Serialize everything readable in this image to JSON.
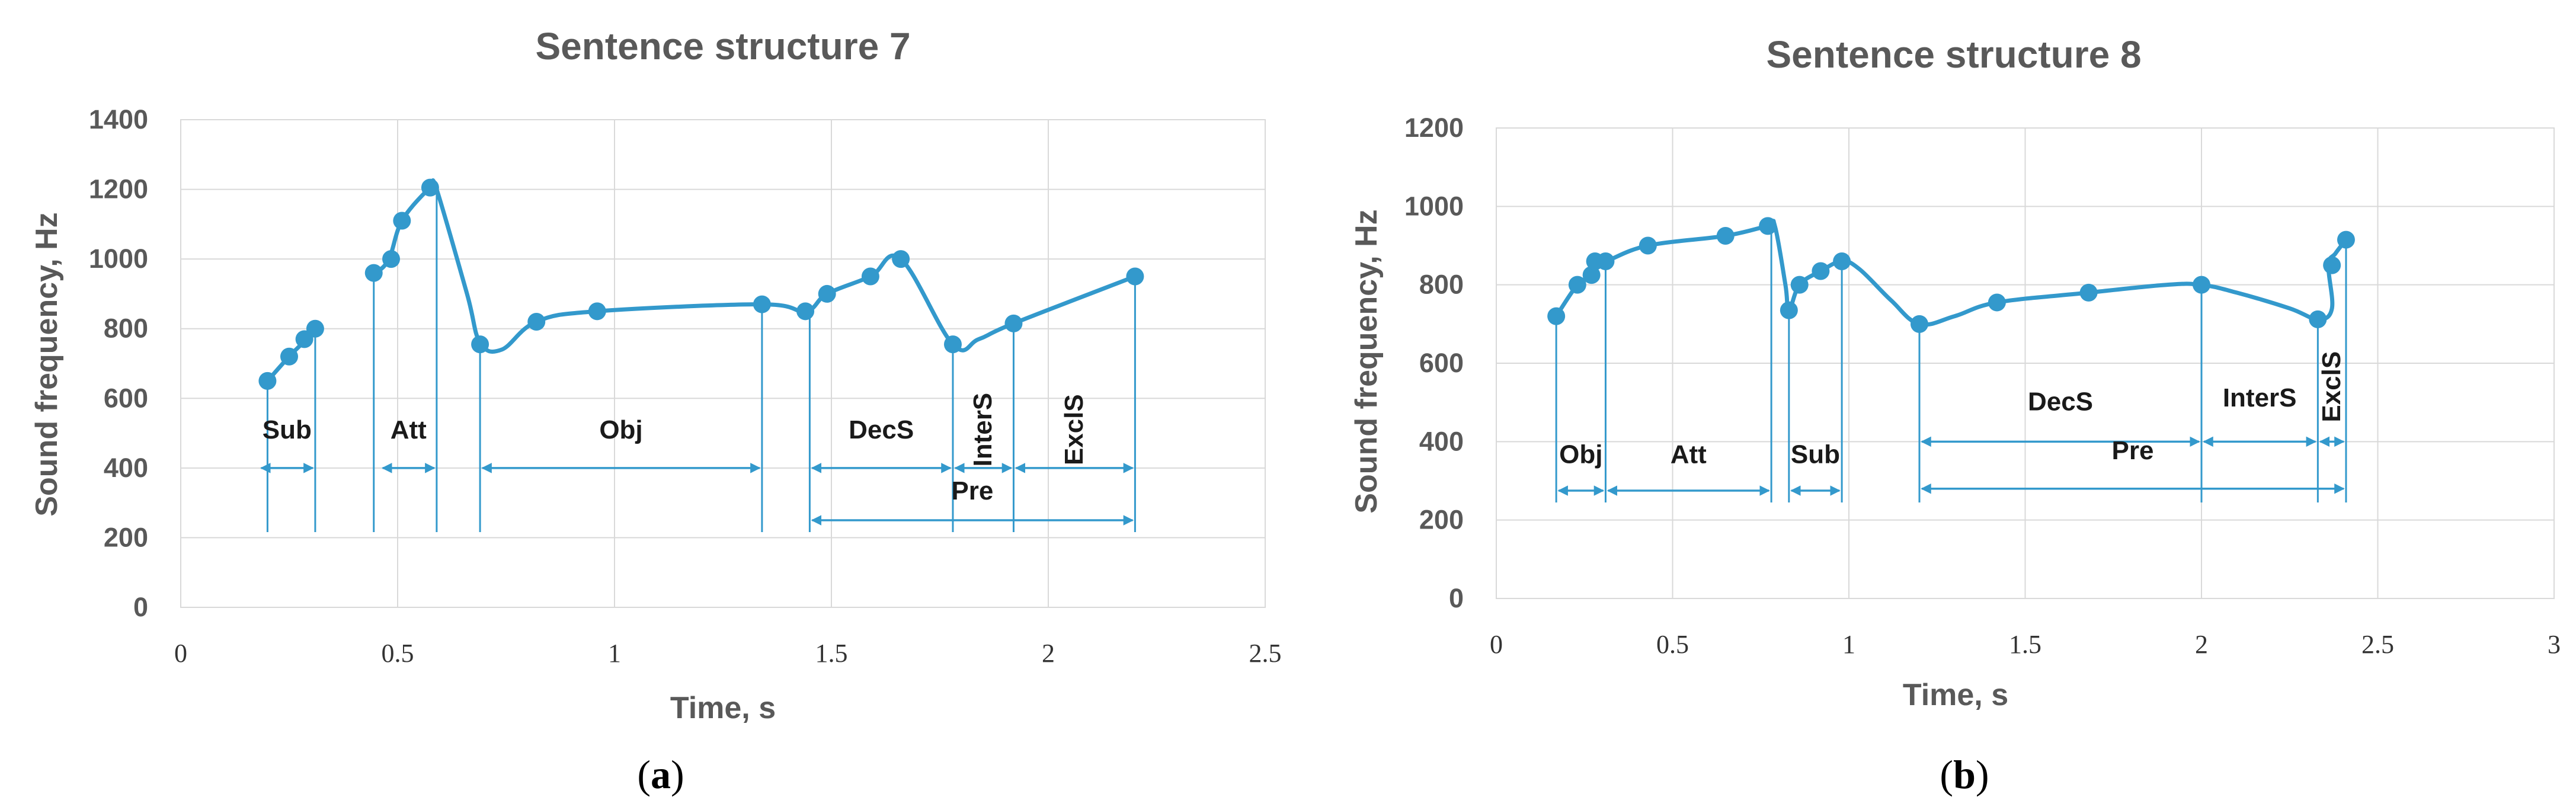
{
  "chart_data": [
    {
      "type": "line",
      "panel": "(a)",
      "panel_letter": "a",
      "title": "Sentence structure 7",
      "xlabel": "Time, s",
      "ylabel": "Sound frequency, Hz",
      "xlim": [
        0,
        2.5
      ],
      "ylim": [
        0,
        1400
      ],
      "xticks": [
        0,
        0.5,
        1,
        1.5,
        2,
        2.5
      ],
      "xtick_labels": [
        "0",
        "0.5",
        "1",
        "1.5",
        "2",
        "2.5"
      ],
      "yticks": [
        0,
        200,
        400,
        600,
        800,
        1000,
        1200,
        1400
      ],
      "ytick_labels": [
        "0",
        "200",
        "400",
        "600",
        "800",
        "1000",
        "1200",
        "1400"
      ],
      "grid": true,
      "color": "#3399CC",
      "curves": [
        [
          [
            0.2,
            650
          ],
          [
            0.25,
            720
          ],
          [
            0.29,
            770
          ],
          [
            0.31,
            800
          ]
        ],
        [
          [
            0.45,
            960
          ],
          [
            0.48,
            1000
          ],
          [
            0.51,
            1110
          ],
          [
            0.57,
            1200
          ],
          [
            0.58,
            1205
          ],
          [
            0.59,
            1200
          ],
          [
            0.66,
            900
          ],
          [
            0.69,
            760
          ],
          [
            0.74,
            740
          ],
          [
            0.82,
            820
          ],
          [
            0.96,
            850
          ],
          [
            1.34,
            870
          ],
          [
            1.44,
            850
          ],
          [
            1.49,
            900
          ],
          [
            1.59,
            950
          ],
          [
            1.66,
            1000
          ],
          [
            1.78,
            755
          ],
          [
            1.84,
            770
          ],
          [
            1.92,
            815
          ],
          [
            2.2,
            950
          ]
        ]
      ],
      "markers": [
        [
          0.2,
          650
        ],
        [
          0.25,
          720
        ],
        [
          0.285,
          770
        ],
        [
          0.31,
          800
        ],
        [
          0.445,
          960
        ],
        [
          0.485,
          1000
        ],
        [
          0.51,
          1110
        ],
        [
          0.575,
          1205
        ],
        [
          0.69,
          755
        ],
        [
          0.82,
          820
        ],
        [
          0.96,
          850
        ],
        [
          1.34,
          870
        ],
        [
          1.44,
          850
        ],
        [
          1.49,
          900
        ],
        [
          1.59,
          950
        ],
        [
          1.66,
          1000
        ],
        [
          1.78,
          755
        ],
        [
          1.92,
          815
        ],
        [
          2.2,
          950
        ]
      ],
      "drops": [
        [
          0.2,
          650
        ],
        [
          0.31,
          800
        ],
        [
          0.445,
          960
        ],
        [
          0.59,
          1200
        ],
        [
          0.69,
          755
        ],
        [
          1.34,
          870
        ],
        [
          1.45,
          850
        ],
        [
          1.78,
          755
        ],
        [
          1.92,
          815
        ],
        [
          2.2,
          950
        ]
      ],
      "segments": [
        {
          "label": "Sub",
          "x1": 0.18,
          "x2": 0.31,
          "y": 400,
          "label_y": 485,
          "vertical": false
        },
        {
          "label": "Att",
          "x1": 0.46,
          "x2": 0.59,
          "y": 400,
          "label_y": 485,
          "vertical": false
        },
        {
          "label": "Obj",
          "x1": 0.69,
          "x2": 1.34,
          "y": 400,
          "label_y": 485,
          "vertical": false
        },
        {
          "label": "DecS",
          "x1": 1.45,
          "x2": 1.78,
          "y": 400,
          "label_y": 485,
          "vertical": false
        },
        {
          "label": "InterS",
          "x1": 1.78,
          "x2": 1.92,
          "y": 400,
          "label_y": 510,
          "vertical": true
        },
        {
          "label": "ExclS",
          "x1": 1.92,
          "x2": 2.2,
          "y": 400,
          "label_y": 510,
          "vertical": true
        },
        {
          "label": "Pre",
          "x1": 1.45,
          "x2": 2.2,
          "y": 250,
          "label_y": 310,
          "vertical": false
        }
      ]
    },
    {
      "type": "line",
      "panel": "(b)",
      "panel_letter": "b",
      "title": "Sentence structure 8",
      "xlabel": "Time, s",
      "ylabel": "Sound frequency, Hz",
      "xlim": [
        0,
        3
      ],
      "ylim": [
        0,
        1200
      ],
      "xticks": [
        0,
        0.5,
        1,
        1.5,
        2,
        2.5,
        3
      ],
      "xtick_labels": [
        "0",
        "0.5",
        "1",
        "1.5",
        "2",
        "2.5",
        "3"
      ],
      "yticks": [
        0,
        200,
        400,
        600,
        800,
        1000,
        1200
      ],
      "ytick_labels": [
        "0",
        "200",
        "400",
        "600",
        "800",
        "1000",
        "1200"
      ],
      "grid": true,
      "color": "#3399CC",
      "curves": [
        [
          [
            0.17,
            720
          ],
          [
            0.23,
            800
          ],
          [
            0.27,
            825
          ],
          [
            0.28,
            860
          ],
          [
            0.31,
            860
          ],
          [
            0.43,
            900
          ],
          [
            0.65,
            925
          ],
          [
            0.77,
            950
          ],
          [
            0.79,
            950
          ],
          [
            0.82,
            800
          ],
          [
            0.83,
            735
          ],
          [
            0.86,
            800
          ],
          [
            0.92,
            835
          ],
          [
            0.98,
            860
          ],
          [
            1.03,
            840
          ],
          [
            1.12,
            760
          ],
          [
            1.2,
            700
          ],
          [
            1.3,
            720
          ],
          [
            1.42,
            755
          ],
          [
            1.68,
            780
          ],
          [
            1.9,
            800
          ],
          [
            2.0,
            800
          ],
          [
            2.1,
            780
          ],
          [
            2.25,
            740
          ],
          [
            2.33,
            712
          ],
          [
            2.37,
            740
          ],
          [
            2.36,
            850
          ],
          [
            2.38,
            880
          ],
          [
            2.41,
            915
          ]
        ]
      ],
      "markers": [
        [
          0.17,
          720
        ],
        [
          0.23,
          800
        ],
        [
          0.27,
          825
        ],
        [
          0.28,
          860
        ],
        [
          0.31,
          860
        ],
        [
          0.43,
          900
        ],
        [
          0.65,
          925
        ],
        [
          0.77,
          950
        ],
        [
          0.83,
          735
        ],
        [
          0.86,
          800
        ],
        [
          0.92,
          835
        ],
        [
          0.98,
          860
        ],
        [
          1.2,
          700
        ],
        [
          1.42,
          755
        ],
        [
          1.68,
          780
        ],
        [
          2.0,
          800
        ],
        [
          2.33,
          712
        ],
        [
          2.37,
          850
        ],
        [
          2.41,
          915
        ]
      ],
      "drops": [
        [
          0.17,
          720
        ],
        [
          0.31,
          860
        ],
        [
          0.78,
          950
        ],
        [
          0.83,
          735
        ],
        [
          0.98,
          860
        ],
        [
          1.2,
          700
        ],
        [
          2.0,
          800
        ],
        [
          2.33,
          712
        ],
        [
          2.41,
          915
        ]
      ],
      "segments": [
        {
          "label": "Obj",
          "x1": 0.17,
          "x2": 0.31,
          "y": 275,
          "label_y": 345,
          "vertical": false
        },
        {
          "label": "Att",
          "x1": 0.31,
          "x2": 0.78,
          "y": 275,
          "label_y": 345,
          "vertical": false
        },
        {
          "label": "Sub",
          "x1": 0.83,
          "x2": 0.98,
          "y": 275,
          "label_y": 345,
          "vertical": false
        },
        {
          "label": "DecS",
          "x1": 1.2,
          "x2": 2.0,
          "y": 400,
          "label_y": 480,
          "vertical": false
        },
        {
          "label": "InterS",
          "x1": 2.0,
          "x2": 2.33,
          "y": 400,
          "label_y": 490,
          "vertical": false
        },
        {
          "label": "ExclS",
          "x1": 2.33,
          "x2": 2.41,
          "y": 400,
          "label_y": 540,
          "vertical": true
        },
        {
          "label": "Pre",
          "x1": 1.2,
          "x2": 2.41,
          "y": 280,
          "label_y": 355,
          "vertical": false
        }
      ]
    }
  ]
}
